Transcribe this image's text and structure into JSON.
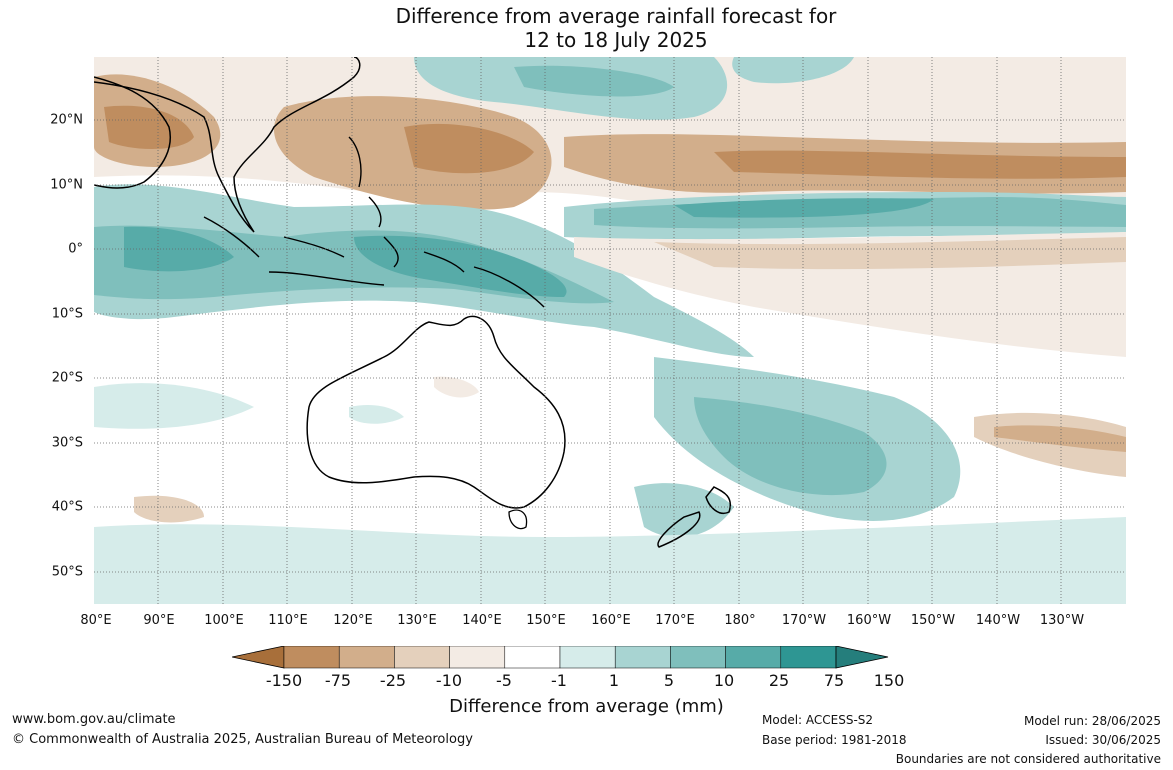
{
  "title": {
    "line1": "Difference from average rainfall forecast for",
    "line2": "12 to 18 July 2025"
  },
  "map": {
    "lat_labels": [
      "20°N",
      "10°N",
      "0°",
      "10°S",
      "20°S",
      "30°S",
      "40°S",
      "50°S"
    ],
    "lon_labels": [
      "80°E",
      "90°E",
      "100°E",
      "110°E",
      "120°E",
      "130°E",
      "140°E",
      "150°E",
      "160°E",
      "170°E",
      "180°",
      "170°W",
      "160°W",
      "150°W",
      "140°W",
      "130°W"
    ]
  },
  "colorbar": {
    "colors": [
      "#a86f3a",
      "#bf8d5f",
      "#d2ae8b",
      "#e4d0bc",
      "#f3ebe4",
      "#ffffff",
      "#d6ecea",
      "#a8d4d2",
      "#7fbfbc",
      "#57aba8",
      "#2e9693",
      "#257e7c"
    ],
    "tick_labels": [
      "-150",
      "-75",
      "-25",
      "-10",
      "-5",
      "-1",
      "1",
      "5",
      "10",
      "25",
      "75",
      "150"
    ],
    "title": "Difference from average (mm)"
  },
  "footer": {
    "website": "www.bom.gov.au/climate",
    "copyright": "© Commonwealth of Australia 2025, Australian Bureau of Meteorology",
    "model": "Model: ACCESS-S2",
    "base_period": "Base period: 1981-2018",
    "model_run": "Model run: 28/06/2025",
    "issued": "Issued: 30/06/2025",
    "disclaimer": "Boundaries are not considered authoritative"
  }
}
